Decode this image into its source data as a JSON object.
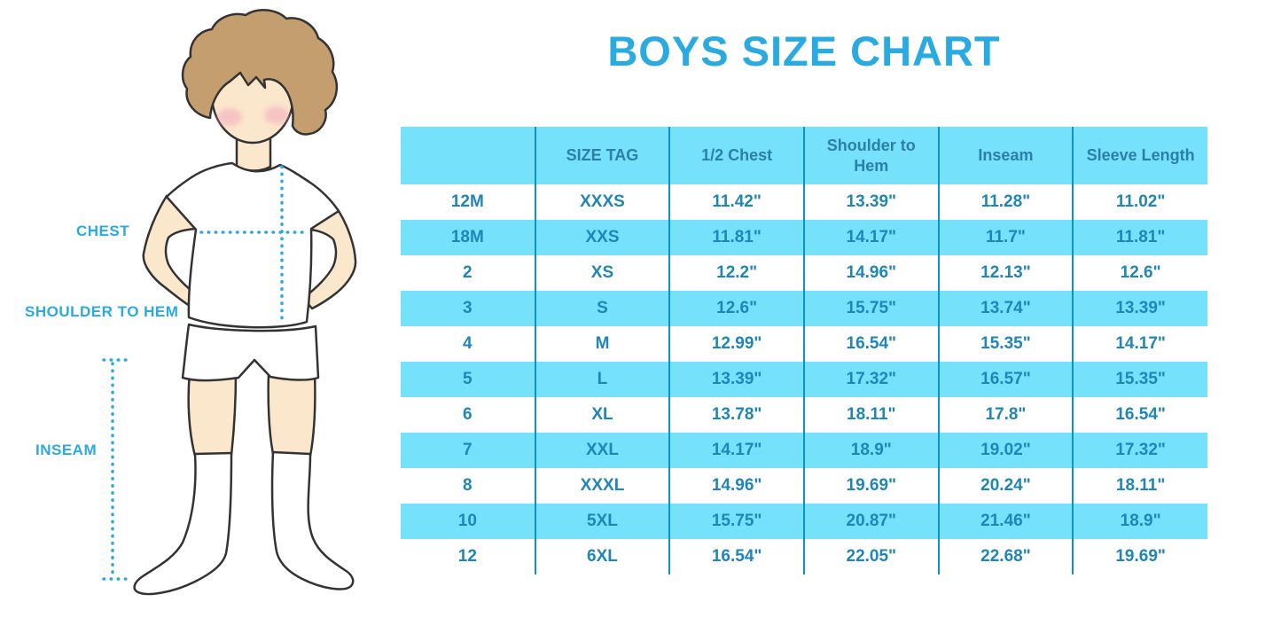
{
  "title": "BOYS SIZE CHART",
  "figure": {
    "labels": {
      "chest": "CHEST",
      "shoulder_to_hem": "SHOULDER TO HEM",
      "inseam": "INSEAM"
    }
  },
  "colors": {
    "accent": "#29ABE2",
    "band_bg": "#75E1FB",
    "header_text": "#2B7FA9",
    "cell_text": "#1F86B8",
    "column_border": "#0E93C9",
    "skin": "#FBE7CB",
    "hair": "#C59E70",
    "blush": "#F2A9BE",
    "outline": "#333333"
  },
  "chart_data": {
    "type": "table",
    "title": "BOYS SIZE CHART",
    "columns": [
      "",
      "SIZE TAG",
      "1/2 Chest",
      "Shoulder to Hem",
      "Inseam",
      "Sleeve Length"
    ],
    "rows": [
      [
        "12M",
        "XXXS",
        "11.42\"",
        "13.39\"",
        "11.28\"",
        "11.02\""
      ],
      [
        "18M",
        "XXS",
        "11.81\"",
        "14.17\"",
        "11.7\"",
        "11.81\""
      ],
      [
        "2",
        "XS",
        "12.2\"",
        "14.96\"",
        "12.13\"",
        "12.6\""
      ],
      [
        "3",
        "S",
        "12.6\"",
        "15.75\"",
        "13.74\"",
        "13.39\""
      ],
      [
        "4",
        "M",
        "12.99\"",
        "16.54\"",
        "15.35\"",
        "14.17\""
      ],
      [
        "5",
        "L",
        "13.39\"",
        "17.32\"",
        "16.57\"",
        "15.35\""
      ],
      [
        "6",
        "XL",
        "13.78\"",
        "18.11\"",
        "17.8\"",
        "16.54\""
      ],
      [
        "7",
        "XXL",
        "14.17\"",
        "18.9\"",
        "19.02\"",
        "17.32\""
      ],
      [
        "8",
        "XXXL",
        "14.96\"",
        "19.69\"",
        "20.24\"",
        "18.11\""
      ],
      [
        "10",
        "5XL",
        "15.75\"",
        "20.87\"",
        "21.46\"",
        "18.9\""
      ],
      [
        "12",
        "6XL",
        "16.54\"",
        "22.05\"",
        "22.68\"",
        "19.69\""
      ]
    ],
    "units": "inches",
    "row_striping": "white / light-cyan alternating, header light-cyan"
  }
}
